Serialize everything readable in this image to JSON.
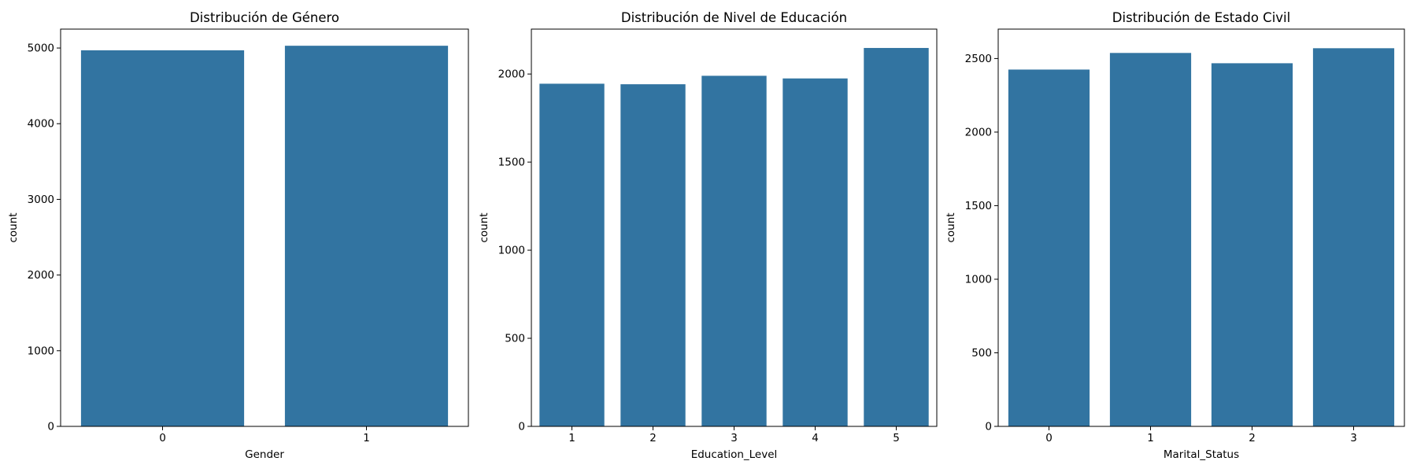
{
  "chart_data": [
    {
      "type": "bar",
      "title": "Distribución de Género",
      "xlabel": "Gender",
      "ylabel": "count",
      "categories": [
        "0",
        "1"
      ],
      "values": [
        4970,
        5030
      ],
      "ylim": [
        0,
        5250
      ],
      "yticks": [
        0,
        1000,
        2000,
        3000,
        4000,
        5000
      ],
      "bar_color": "#3274a1",
      "grid": false
    },
    {
      "type": "bar",
      "title": "Distribución de Nivel de Educación",
      "xlabel": "Education_Level",
      "ylabel": "count",
      "categories": [
        "1",
        "2",
        "3",
        "4",
        "5"
      ],
      "values": [
        1945,
        1942,
        1990,
        1975,
        2148
      ],
      "ylim": [
        0,
        2255
      ],
      "yticks": [
        0,
        500,
        1000,
        1500,
        2000
      ],
      "bar_color": "#3274a1",
      "grid": false
    },
    {
      "type": "bar",
      "title": "Distribución de Estado Civil",
      "xlabel": "Marital_Status",
      "ylabel": "count",
      "categories": [
        "0",
        "1",
        "2",
        "3"
      ],
      "values": [
        2425,
        2538,
        2468,
        2570
      ],
      "ylim": [
        0,
        2700
      ],
      "yticks": [
        0,
        500,
        1000,
        1500,
        2000,
        2500
      ],
      "bar_color": "#3274a1",
      "grid": false
    }
  ]
}
